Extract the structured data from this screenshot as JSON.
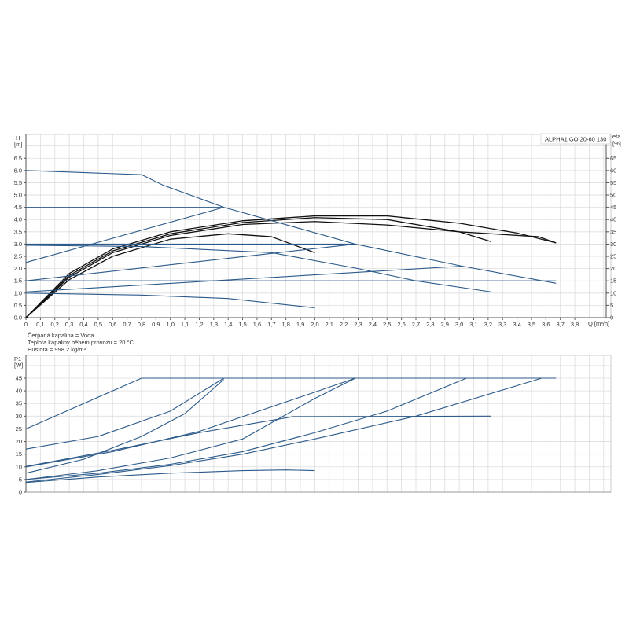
{
  "chart_data": [
    {
      "type": "line",
      "title": "ALPHA1 GO 20-60 130",
      "xlabel": "Q [m³/h]",
      "ylabel_top": "H",
      "ylabel_unit": "[m]",
      "y2label_top": "eta",
      "y2label_unit": "[%]",
      "xlim": [
        0,
        4.05
      ],
      "ylim": [
        0,
        7.47
      ],
      "y2lim": [
        0,
        74.7
      ],
      "grid": true,
      "legend": "top-right",
      "x_ticks": [
        "0",
        "0,1",
        "0,2",
        "0,3",
        "0,4",
        "0,5",
        "0,6",
        "0,7",
        "0,8",
        "0,9",
        "1,0",
        "1,1",
        "1,2",
        "1,3",
        "1,4",
        "1,5",
        "1,6",
        "1,7",
        "1,8",
        "1,9",
        "2,0",
        "2,1",
        "2,2",
        "2,3",
        "2,4",
        "2,5",
        "2,6",
        "2,7",
        "2,8",
        "2,9",
        "3,0",
        "3,1",
        "3,2",
        "3,3",
        "3,4",
        "3,5",
        "3,6",
        "3,7",
        "3,8"
      ],
      "y_ticks": [
        "0.0",
        "0.5",
        "1.0",
        "1.5",
        "2.0",
        "2.5",
        "3.0",
        "3.5",
        "4.0",
        "4.5",
        "5.0",
        "5.5",
        "6.0",
        "6.5"
      ],
      "y2_ticks": [
        "0",
        "5",
        "10",
        "15",
        "20",
        "25",
        "30",
        "35",
        "40",
        "45",
        "50",
        "55",
        "60",
        "65"
      ],
      "colors": {
        "head": "#2b5a8a",
        "efficiency": "#111111"
      },
      "head_series": [
        {
          "points": [
            [
              0,
              6.0
            ],
            [
              0.8,
              5.83
            ],
            [
              0.95,
              5.4
            ],
            [
              1.37,
              4.5
            ],
            [
              2.28,
              3.0
            ],
            [
              3.02,
              2.1
            ],
            [
              3.67,
              1.4
            ]
          ]
        },
        {
          "points": [
            [
              0,
              4.5
            ],
            [
              1.37,
              4.5
            ]
          ]
        },
        {
          "points": [
            [
              0,
              2.25
            ],
            [
              1.37,
              4.5
            ]
          ]
        },
        {
          "points": [
            [
              0,
              3.0
            ],
            [
              2.28,
              3.0
            ]
          ]
        },
        {
          "points": [
            [
              0,
              1.5
            ],
            [
              2.28,
              3.0
            ]
          ]
        },
        {
          "points": [
            [
              0,
              2.95
            ],
            [
              0.8,
              2.9
            ],
            [
              1.7,
              2.65
            ],
            [
              2.3,
              2.0
            ],
            [
              2.7,
              1.5
            ],
            [
              3.22,
              1.05
            ]
          ]
        },
        {
          "points": [
            [
              0,
              1.05
            ],
            [
              3.02,
              2.1
            ]
          ]
        },
        {
          "points": [
            [
              0,
              1.5
            ],
            [
              3.67,
              1.5
            ]
          ]
        },
        {
          "points": [
            [
              0,
              1.0
            ],
            [
              0.8,
              0.92
            ],
            [
              1.4,
              0.78
            ],
            [
              2.0,
              0.4
            ]
          ]
        }
      ],
      "efficiency_series": [
        {
          "points": [
            [
              0,
              0
            ],
            [
              0.3,
              1.8
            ],
            [
              0.6,
              2.8
            ],
            [
              1.0,
              3.5
            ],
            [
              1.5,
              3.95
            ],
            [
              2.0,
              4.15
            ],
            [
              2.5,
              4.15
            ],
            [
              3.0,
              3.85
            ],
            [
              3.4,
              3.45
            ],
            [
              3.67,
              3.05
            ]
          ]
        },
        {
          "points": [
            [
              0,
              0
            ],
            [
              0.3,
              1.72
            ],
            [
              0.6,
              2.72
            ],
            [
              1.0,
              3.42
            ],
            [
              1.5,
              3.88
            ],
            [
              2.0,
              4.08
            ],
            [
              2.5,
              4.0
            ],
            [
              3.0,
              3.5
            ],
            [
              3.22,
              3.1
            ]
          ]
        },
        {
          "points": [
            [
              0,
              0
            ],
            [
              0.3,
              1.65
            ],
            [
              0.6,
              2.65
            ],
            [
              1.0,
              3.35
            ],
            [
              1.5,
              3.8
            ],
            [
              2.0,
              3.92
            ],
            [
              2.5,
              3.78
            ],
            [
              3.0,
              3.5
            ],
            [
              3.55,
              3.3
            ],
            [
              3.67,
              3.05
            ]
          ]
        },
        {
          "points": [
            [
              0,
              0
            ],
            [
              0.3,
              1.55
            ],
            [
              0.6,
              2.5
            ],
            [
              1.0,
              3.2
            ],
            [
              1.4,
              3.42
            ],
            [
              1.7,
              3.3
            ],
            [
              2.0,
              2.65
            ]
          ]
        }
      ]
    },
    {
      "type": "line",
      "ylabel_top": "P1",
      "ylabel_unit": "[W]",
      "xlim": [
        0,
        4.05
      ],
      "ylim": [
        0,
        54
      ],
      "grid": true,
      "y_ticks": [
        "0",
        "5",
        "10",
        "15",
        "20",
        "25",
        "30",
        "35",
        "40",
        "45"
      ],
      "colors": {
        "power": "#2b5a8a"
      },
      "series": [
        {
          "points": [
            [
              0,
              25
            ],
            [
              0.8,
              45
            ],
            [
              3.67,
              45
            ]
          ]
        },
        {
          "points": [
            [
              0,
              17
            ],
            [
              0.5,
              22
            ],
            [
              1.0,
              32
            ],
            [
              1.37,
              45
            ]
          ]
        },
        {
          "points": [
            [
              0,
              7.5
            ],
            [
              0.4,
              13
            ],
            [
              0.8,
              22
            ],
            [
              1.1,
              31
            ],
            [
              1.37,
              44.5
            ]
          ]
        },
        {
          "points": [
            [
              0,
              10
            ],
            [
              0.6,
              16
            ],
            [
              1.2,
              24
            ],
            [
              2.0,
              39.5
            ],
            [
              2.28,
              45
            ]
          ]
        },
        {
          "points": [
            [
              0,
              5
            ],
            [
              0.5,
              8.5
            ],
            [
              1.0,
              13.5
            ],
            [
              1.5,
              21
            ],
            [
              2.0,
              37
            ],
            [
              2.28,
              45
            ]
          ]
        },
        {
          "points": [
            [
              0,
              10.2
            ],
            [
              0.6,
              16.5
            ],
            [
              1.2,
              23.5
            ],
            [
              1.85,
              29.8
            ],
            [
              3.22,
              30
            ]
          ]
        },
        {
          "points": [
            [
              0,
              5
            ],
            [
              0.5,
              7.5
            ],
            [
              1.0,
              11
            ],
            [
              1.5,
              16
            ],
            [
              2.0,
              23.5
            ],
            [
              2.5,
              32
            ],
            [
              3.05,
              45
            ]
          ]
        },
        {
          "points": [
            [
              0,
              4
            ],
            [
              0.5,
              7
            ],
            [
              1.0,
              10.5
            ],
            [
              1.5,
              15
            ],
            [
              2.0,
              21
            ],
            [
              2.7,
              30
            ],
            [
              3.57,
              45
            ]
          ]
        },
        {
          "points": [
            [
              0,
              3.8
            ],
            [
              0.5,
              6
            ],
            [
              1.0,
              7.5
            ],
            [
              1.5,
              8.5
            ],
            [
              1.8,
              8.8
            ],
            [
              2.0,
              8.5
            ]
          ]
        }
      ]
    }
  ],
  "info": {
    "line1": "Čerpaná kapalina = Voda",
    "line2": "Teplota kapaliny během provozu = 20 °C",
    "line3": "Hustota = 998.2 kg/m³"
  }
}
